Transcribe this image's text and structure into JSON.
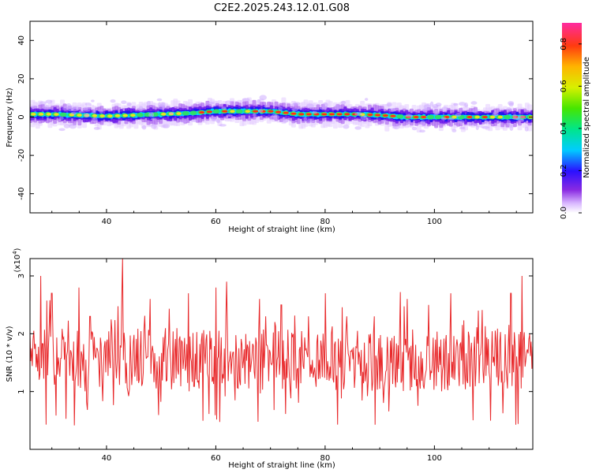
{
  "title": "C2E2.2025.243.12.01.G08",
  "chart_data": [
    {
      "type": "heatmap",
      "name": "spectrogram",
      "xlabel": "Height of straight line (km)",
      "ylabel": "Frequency (Hz)",
      "xlim": [
        26,
        118
      ],
      "ylim": [
        -50,
        50
      ],
      "xticks": [
        40,
        60,
        80,
        100
      ],
      "yticks": [
        -40,
        -20,
        0,
        20,
        40
      ],
      "ridge": {
        "description_values": "dominant frequency band near 0 to 4 Hz",
        "x": [
          26,
          30,
          35,
          40,
          45,
          50,
          55,
          60,
          65,
          70,
          75,
          80,
          85,
          90,
          95,
          100,
          105,
          110,
          118
        ],
        "center_hz": [
          1.5,
          1.5,
          1.0,
          0.5,
          1.0,
          1.5,
          2.0,
          3.0,
          3.0,
          3.0,
          1.5,
          1.5,
          1.5,
          1.0,
          0.0,
          0.0,
          0.0,
          0.0,
          0.0
        ]
      },
      "colorbar": {
        "label": "Normalized spectral amplitude",
        "range": [
          0.0,
          0.9
        ],
        "ticks": [
          "0.0",
          "0.2",
          "0.4",
          "0.6",
          "0.8"
        ]
      }
    },
    {
      "type": "line",
      "name": "snr",
      "xlabel": "Height of straight line (km)",
      "ylabel": "SNR (10 * v/v)",
      "exponent_label": "(x10",
      "exponent_power": "4",
      "exponent_close": ")",
      "xlim": [
        26,
        118
      ],
      "ylim": [
        0,
        3.3
      ],
      "xticks": [
        40,
        60,
        80,
        100
      ],
      "yticks": [
        1,
        2,
        3
      ],
      "color": "#e8282a",
      "peaks": {
        "x": [
          28,
          30,
          35,
          37,
          43,
          48,
          55,
          60,
          62,
          68,
          72,
          77,
          80,
          84,
          89,
          95,
          99,
          103,
          108,
          114,
          116
        ],
        "y": [
          3.0,
          2.7,
          2.8,
          2.3,
          3.3,
          2.6,
          2.7,
          2.8,
          2.9,
          2.6,
          2.5,
          2.3,
          2.7,
          2.3,
          2.3,
          2.6,
          2.5,
          2.7,
          2.4,
          2.7,
          3.0
        ]
      }
    }
  ]
}
